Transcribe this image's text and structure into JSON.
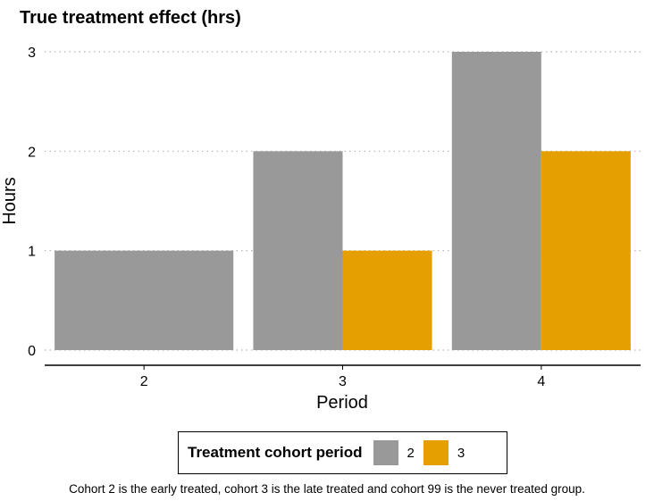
{
  "chart_data": {
    "type": "bar",
    "title": "True treatment effect (hrs)",
    "xlabel": "Period",
    "ylabel": "Hours",
    "categories": [
      "2",
      "3",
      "4"
    ],
    "series": [
      {
        "name": "2",
        "color": "#999999",
        "values": [
          1,
          2,
          3
        ]
      },
      {
        "name": "3",
        "color": "#E69F00",
        "values": [
          null,
          1,
          2
        ]
      }
    ],
    "ylim": [
      0,
      3
    ],
    "yticks": [
      "0",
      "1",
      "2",
      "3"
    ],
    "grid": "horizontal dotted",
    "legend": {
      "title": "Treatment cohort period",
      "position": "bottom"
    }
  },
  "caption": "Cohort 2 is the early treated, cohort 3 is the late treated and cohort 99 is the never treated group."
}
